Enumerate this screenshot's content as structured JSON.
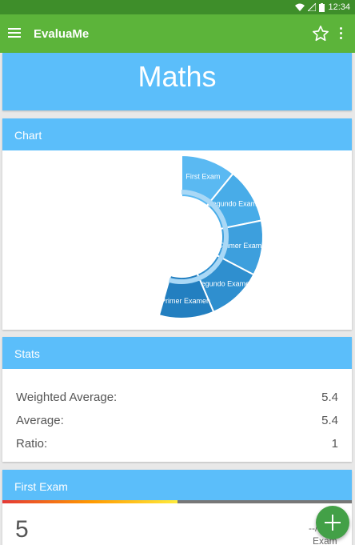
{
  "status_bar": {
    "time": "12:34"
  },
  "app_bar": {
    "title": "EvaluaMe"
  },
  "subject": {
    "name": "Maths"
  },
  "chart_card": {
    "header": "Chart"
  },
  "chart_data": {
    "type": "pie",
    "categories": [
      "First Exam",
      "Segundo Examen",
      "Primer Examen",
      "Segundo Examen",
      "Primer Examen"
    ],
    "values": [
      1,
      1,
      1,
      1,
      1
    ]
  },
  "stats_card": {
    "header": "Stats",
    "rows": [
      {
        "label": "Weighted Average:",
        "value": "5.4"
      },
      {
        "label": "Average:",
        "value": "5.4"
      },
      {
        "label": "Ratio:",
        "value": "1"
      }
    ]
  },
  "exam_card": {
    "header": "First Exam",
    "grade": "5",
    "grade_fraction": 0.5,
    "weight_text": "--/",
    "exam_label": "Exam"
  },
  "colors": {
    "status_bar": "#3e8e2a",
    "app_bar": "#5cb43a",
    "card_header": "#5bbefa",
    "fab": "#43a047"
  },
  "icons": [
    "menu-icon",
    "star-outline-icon",
    "more-vert-icon",
    "wifi-icon",
    "signal-icon",
    "battery-icon",
    "add-icon"
  ]
}
